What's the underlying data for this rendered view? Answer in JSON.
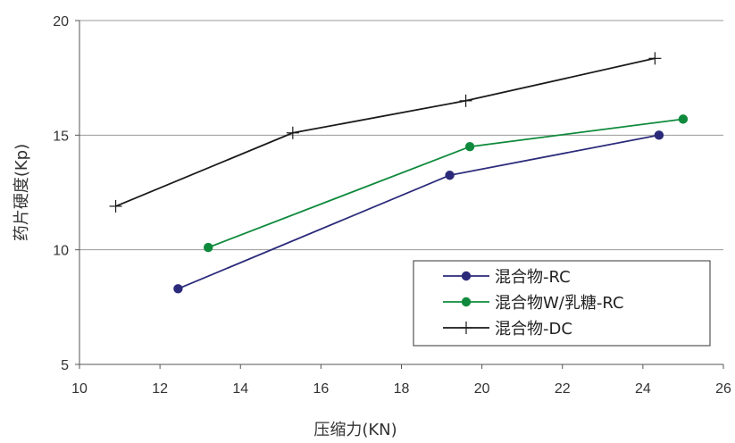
{
  "chart_data": {
    "type": "line",
    "title": "",
    "xlabel": "压缩力(KN)",
    "ylabel": "药片硬度(Kp)",
    "xlim": [
      10,
      26
    ],
    "ylim": [
      5,
      20
    ],
    "xticks": [
      10,
      12,
      14,
      16,
      18,
      20,
      22,
      24,
      26
    ],
    "yticks": [
      5,
      10,
      15,
      20
    ],
    "grid": "horizontal",
    "legend_position": "bottom-right",
    "series": [
      {
        "name": "混合物-RC",
        "color": "#2b2a7a",
        "marker": "circle",
        "points": [
          [
            12.45,
            8.3
          ],
          [
            19.2,
            13.25
          ],
          [
            24.4,
            15.0
          ]
        ]
      },
      {
        "name": "混合物W/乳糖-RC",
        "color": "#0f8a3c",
        "marker": "circle",
        "points": [
          [
            13.2,
            10.1
          ],
          [
            19.7,
            14.5
          ],
          [
            25.0,
            15.7
          ]
        ]
      },
      {
        "name": "混合物-DC",
        "color": "#1a1a1a",
        "marker": "plus",
        "points": [
          [
            10.9,
            11.9
          ],
          [
            15.3,
            15.1
          ],
          [
            19.6,
            16.5
          ],
          [
            24.3,
            18.35
          ]
        ]
      }
    ]
  }
}
